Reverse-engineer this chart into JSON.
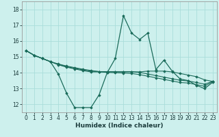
{
  "xlabel": "Humidex (Indice chaleur)",
  "background_color": "#cdf0ed",
  "grid_color": "#aaddda",
  "line_color": "#1a6b5a",
  "xlim": [
    -0.5,
    23.5
  ],
  "ylim": [
    11.5,
    18.5
  ],
  "yticks": [
    12,
    13,
    14,
    15,
    16,
    17,
    18
  ],
  "xticks": [
    0,
    1,
    2,
    3,
    4,
    5,
    6,
    7,
    8,
    9,
    10,
    11,
    12,
    13,
    14,
    15,
    16,
    17,
    18,
    19,
    20,
    21,
    22,
    23
  ],
  "series1": [
    15.4,
    15.1,
    14.9,
    14.7,
    13.9,
    12.7,
    11.8,
    11.8,
    11.8,
    12.6,
    14.0,
    14.9,
    17.6,
    16.5,
    16.1,
    16.5,
    14.2,
    14.8,
    14.1,
    13.6,
    13.5,
    13.2,
    13.0,
    13.4
  ],
  "series2": [
    15.4,
    15.1,
    14.9,
    14.7,
    14.55,
    14.42,
    14.32,
    14.22,
    14.14,
    14.07,
    14.05,
    14.05,
    14.05,
    14.05,
    14.05,
    14.1,
    14.1,
    14.1,
    14.05,
    13.95,
    13.85,
    13.75,
    13.55,
    13.45
  ],
  "series3": [
    15.4,
    15.1,
    14.9,
    14.7,
    14.52,
    14.38,
    14.28,
    14.18,
    14.1,
    14.07,
    14.07,
    14.07,
    14.07,
    14.07,
    14.02,
    13.92,
    13.82,
    13.72,
    13.62,
    13.52,
    13.48,
    13.38,
    13.28,
    13.45
  ],
  "series4": [
    15.4,
    15.1,
    14.9,
    14.7,
    14.5,
    14.35,
    14.24,
    14.13,
    14.05,
    14.05,
    14.02,
    14.0,
    13.98,
    13.95,
    13.88,
    13.78,
    13.68,
    13.58,
    13.48,
    13.38,
    13.35,
    13.25,
    13.15,
    13.45
  ]
}
